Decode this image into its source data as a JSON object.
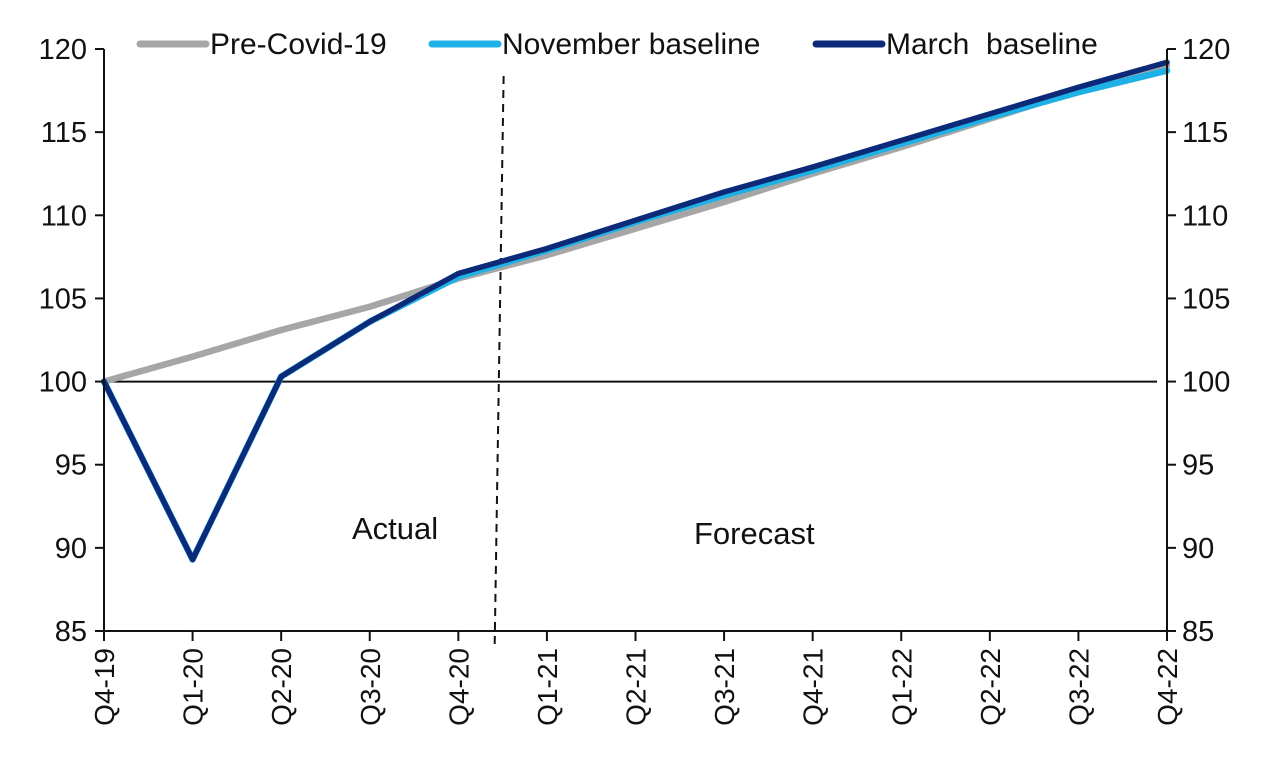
{
  "chart_data": {
    "type": "line",
    "categories": [
      "Q4-19",
      "Q1-20",
      "Q2-20",
      "Q3-20",
      "Q4-20",
      "Q1-21",
      "Q2-21",
      "Q3-21",
      "Q4-21",
      "Q1-22",
      "Q2-22",
      "Q3-22",
      "Q4-22"
    ],
    "ylim": [
      85,
      120
    ],
    "yticks": [
      85,
      90,
      95,
      100,
      105,
      110,
      115,
      120
    ],
    "dual_y_axis": true,
    "reference_line": 100,
    "forecast_divider_after": "Q4-20",
    "grid": false,
    "legend_position": "top",
    "series": [
      {
        "name": "Pre-Covid-19",
        "color": "#a6a6a6",
        "values": [
          100,
          101.5,
          103.1,
          104.5,
          106.2,
          107.6,
          109.2,
          110.8,
          112.5,
          114.1,
          115.8,
          117.5,
          119.0
        ]
      },
      {
        "name": "November baseline",
        "color": "#1fb1e6",
        "values": [
          100,
          89.3,
          100.3,
          103.6,
          106.3,
          107.9,
          109.6,
          111.2,
          112.7,
          114.3,
          115.9,
          117.4,
          118.7
        ]
      },
      {
        "name": "March  baseline",
        "color": "#0c2a78",
        "values": [
          100,
          89.3,
          100.3,
          103.6,
          106.5,
          108.0,
          109.7,
          111.4,
          112.9,
          114.5,
          116.1,
          117.7,
          119.2
        ]
      }
    ],
    "annotations": {
      "actual": "Actual",
      "forecast": "Forecast"
    }
  }
}
